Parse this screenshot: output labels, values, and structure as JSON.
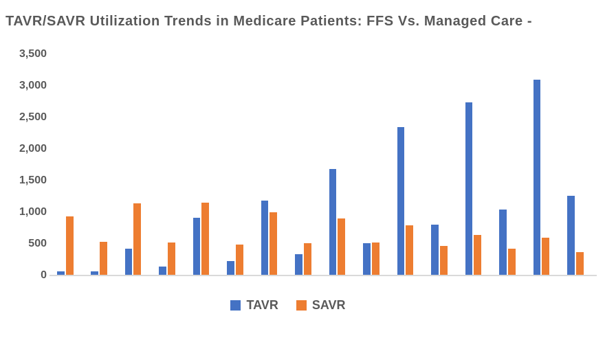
{
  "title": "TAVR/SAVR Utilization Trends in Medicare Patients: FFS Vs. Managed Care -",
  "colors": {
    "tavr_blue": "#4472C4",
    "savr_orange": "#ED7D31",
    "axis_gray": "#D9D9D9",
    "text_gray": "#595959"
  },
  "legend": {
    "items": [
      {
        "label": "TAVR",
        "color": "#4472C4"
      },
      {
        "label": "SAVR",
        "color": "#ED7D31"
      }
    ]
  },
  "chart_data": {
    "type": "bar",
    "title": "TAVR/SAVR Utilization Trends in Medicare Patients: FFS Vs. Managed Care",
    "categories": [
      "",
      "",
      "",
      "",
      "",
      "",
      "",
      "",
      "",
      "",
      "",
      "",
      "",
      "",
      "",
      ""
    ],
    "series": [
      {
        "name": "TAVR",
        "color": "#4472C4",
        "values": [
          70,
          70,
          420,
          140,
          910,
          230,
          1190,
          340,
          1690,
          515,
          2350,
          800,
          2740,
          1040,
          3100,
          1260
        ]
      },
      {
        "name": "SAVR",
        "color": "#ED7D31",
        "values": [
          940,
          530,
          1140,
          520,
          1150,
          490,
          1000,
          510,
          900,
          525,
          790,
          470,
          640,
          420,
          600,
          370
        ]
      }
    ],
    "xlabel": "",
    "ylabel": "",
    "ylim": [
      0,
      3500
    ],
    "ytick_labels": [
      "3,500",
      "3,000",
      "2,500",
      "2,000",
      "1,500",
      "1,000",
      "500",
      "0"
    ],
    "ytick_values": [
      3500,
      3000,
      2500,
      2000,
      1500,
      1000,
      500,
      0
    ],
    "grid": false,
    "x_axis_category_labels_visible": false,
    "legend_position": "bottom"
  }
}
